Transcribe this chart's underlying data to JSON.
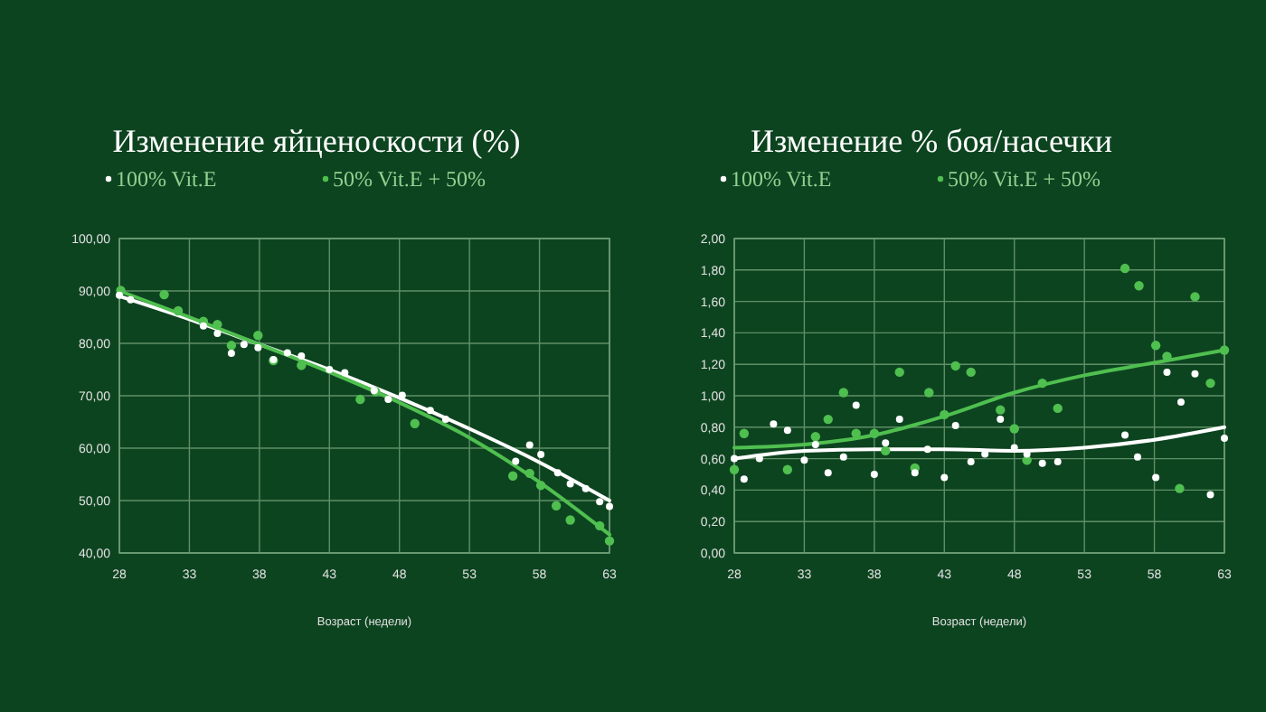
{
  "chart_data": [
    {
      "type": "scatter",
      "title": "Изменение яйценоскости (%)",
      "xlabel": "Возраст (недели)",
      "legend": "top",
      "grid": true,
      "marker": "circle",
      "xlim": [
        28,
        63
      ],
      "xticks": [
        28,
        33,
        38,
        43,
        48,
        53,
        58,
        63
      ],
      "ylim": [
        40,
        100
      ],
      "yticks": [
        {
          "value": 40,
          "label": "40,00"
        },
        {
          "value": 50,
          "label": "50,00"
        },
        {
          "value": 60,
          "label": "60,00"
        },
        {
          "value": 70,
          "label": "70,00"
        },
        {
          "value": 80,
          "label": "80,00"
        },
        {
          "value": 90,
          "label": "90,00"
        },
        {
          "value": 100,
          "label": "100,00"
        }
      ],
      "series": [
        {
          "name": "100% Vit.E",
          "color": "#ffffff",
          "x": [
            28,
            28.8,
            34,
            35,
            36,
            36.9,
            37.9,
            39,
            40,
            41,
            43,
            44.1,
            46.2,
            47.2,
            48.2,
            50.2,
            51.3,
            56.3,
            57.3,
            58.1,
            59.3,
            60.2,
            61.3,
            62.3,
            63
          ],
          "values": [
            89.2,
            88.3,
            83.3,
            81.9,
            78.1,
            79.8,
            79.2,
            76.9,
            78.2,
            77.6,
            75,
            74.4,
            71,
            69.3,
            70.1,
            67.2,
            65.5,
            57.5,
            60.6,
            58.8,
            55.3,
            53.2,
            52.3,
            49.8,
            48.9
          ]
        },
        {
          "name": "50% Vit.E + 50%",
          "color": "#4fbf4f",
          "x": [
            28.1,
            31.2,
            32.2,
            34,
            35,
            36,
            37.9,
            39,
            41,
            45.2,
            46.3,
            49.1,
            56.1,
            57.3,
            58.1,
            59.2,
            60.2,
            62.3,
            63
          ],
          "values": [
            90.1,
            89.3,
            86.2,
            84.2,
            83.6,
            79.6,
            81.5,
            76.7,
            75.8,
            69.3,
            70.8,
            64.7,
            54.7,
            55.2,
            52.9,
            49,
            46.3,
            45.2,
            42.3
          ]
        },
        {
          "type": "line",
          "marker": "none",
          "color": "#ffffff",
          "x": [
            28,
            33,
            38,
            43,
            48,
            53,
            58,
            63
          ],
          "values": [
            89,
            84.6,
            79.8,
            75,
            69.6,
            63.7,
            57.3,
            50
          ]
        },
        {
          "type": "line",
          "marker": "none",
          "color": "#4fbf4f",
          "x": [
            28,
            33,
            38,
            43,
            48,
            53,
            58,
            63
          ],
          "values": [
            90,
            85,
            79.8,
            74.5,
            68.7,
            62,
            53.5,
            43.5
          ]
        }
      ]
    },
    {
      "type": "scatter",
      "title": "Изменение % боя/насечки",
      "xlabel": "Возраст (недели)",
      "legend": "top",
      "grid": true,
      "marker": "circle",
      "xlim": [
        28,
        63
      ],
      "xticks": [
        28,
        33,
        38,
        43,
        48,
        53,
        58,
        63
      ],
      "ylim": [
        0,
        2
      ],
      "yticks": [
        {
          "value": 0,
          "label": "0,00"
        },
        {
          "value": 0.2,
          "label": "0,20"
        },
        {
          "value": 0.4,
          "label": "0,40"
        },
        {
          "value": 0.6,
          "label": "0,60"
        },
        {
          "value": 0.8,
          "label": "0,80"
        },
        {
          "value": 1,
          "label": "1,00"
        },
        {
          "value": 1.2,
          "label": "1,20"
        },
        {
          "value": 1.4,
          "label": "1,40"
        },
        {
          "value": 1.6,
          "label": "1,60"
        },
        {
          "value": 1.8,
          "label": "1,80"
        },
        {
          "value": 2,
          "label": "2,00"
        }
      ],
      "series": [
        {
          "name": "100% Vit.E",
          "color": "#ffffff",
          "x": [
            28,
            28.7,
            29.8,
            30.8,
            31.8,
            33,
            33.8,
            34.7,
            35.8,
            36.7,
            38,
            38.8,
            39.8,
            40.9,
            41.8,
            43,
            43.8,
            44.9,
            45.9,
            47,
            48,
            48.9,
            50,
            51.1,
            55.9,
            56.8,
            58.1,
            58.9,
            59.9,
            60.9,
            62,
            63
          ],
          "values": [
            0.6,
            0.47,
            0.6,
            0.82,
            0.78,
            0.59,
            0.69,
            0.51,
            0.61,
            0.94,
            0.5,
            0.7,
            0.85,
            0.51,
            0.66,
            0.48,
            0.81,
            0.58,
            0.63,
            0.85,
            0.67,
            0.63,
            0.57,
            0.58,
            0.75,
            0.61,
            0.48,
            1.15,
            0.96,
            1.14,
            0.37,
            0.73
          ]
        },
        {
          "name": "50% Vit.E + 50%",
          "color": "#4fbf4f",
          "x": [
            28,
            28.7,
            31.8,
            33.8,
            34.7,
            35.8,
            36.7,
            38,
            38.8,
            39.8,
            40.9,
            41.9,
            43,
            43.8,
            44.9,
            47,
            48,
            48.9,
            50,
            51.1,
            55.9,
            56.9,
            58.1,
            58.9,
            59.8,
            60.9,
            62,
            63
          ],
          "values": [
            0.53,
            0.76,
            0.53,
            0.74,
            0.85,
            1.02,
            0.76,
            0.76,
            0.65,
            1.15,
            0.54,
            1.02,
            0.88,
            1.19,
            1.15,
            0.91,
            0.79,
            0.59,
            1.08,
            0.92,
            1.81,
            1.7,
            1.32,
            1.25,
            0.41,
            1.63,
            1.08,
            1.29
          ]
        },
        {
          "type": "line",
          "marker": "none",
          "color": "#ffffff",
          "x": [
            28,
            33,
            38,
            43,
            48,
            53,
            58,
            63
          ],
          "values": [
            0.6,
            0.65,
            0.66,
            0.66,
            0.65,
            0.67,
            0.72,
            0.8
          ]
        },
        {
          "type": "line",
          "marker": "none",
          "color": "#4fbf4f",
          "x": [
            28,
            33,
            38,
            43,
            48,
            53,
            58,
            63
          ],
          "values": [
            0.67,
            0.69,
            0.75,
            0.87,
            1.02,
            1.13,
            1.21,
            1.29
          ]
        }
      ]
    }
  ]
}
